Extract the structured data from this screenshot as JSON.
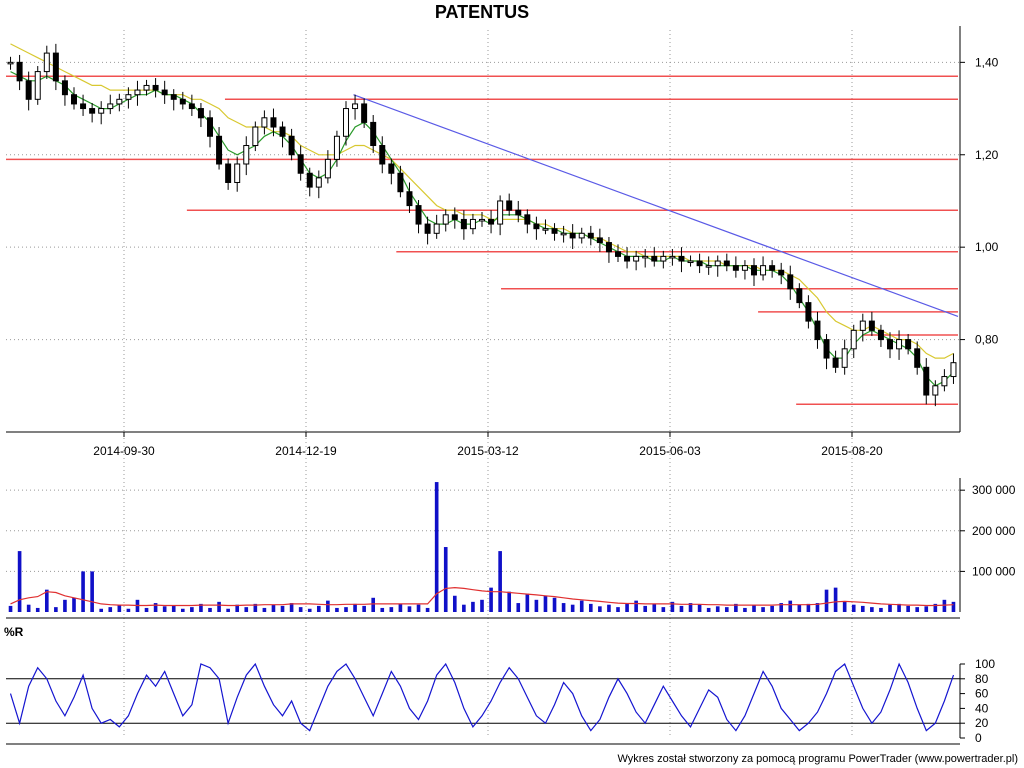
{
  "chart_data": {
    "type": "candlestick",
    "title": "PATENTUS",
    "footer": "Wykres został stworzony za pomocą programu PowerTrader (www.powertrader.pl)",
    "x_ticks": [
      "2014-09-30",
      "2014-12-19",
      "2015-03-12",
      "2015-06-03",
      "2015-08-20"
    ],
    "price": {
      "y_ticks": [
        "1,40",
        "1,20",
        "1,00",
        "0,80"
      ],
      "y_tick_values": [
        1.4,
        1.2,
        1.0,
        0.8
      ],
      "ylim": [
        0.6,
        1.47
      ],
      "close": [
        1.4,
        1.36,
        1.32,
        1.38,
        1.42,
        1.36,
        1.33,
        1.31,
        1.3,
        1.29,
        1.3,
        1.31,
        1.32,
        1.33,
        1.34,
        1.35,
        1.34,
        1.33,
        1.32,
        1.31,
        1.3,
        1.28,
        1.24,
        1.18,
        1.14,
        1.18,
        1.22,
        1.26,
        1.28,
        1.26,
        1.24,
        1.2,
        1.16,
        1.13,
        1.15,
        1.19,
        1.24,
        1.3,
        1.31,
        1.27,
        1.22,
        1.18,
        1.16,
        1.12,
        1.09,
        1.05,
        1.03,
        1.05,
        1.07,
        1.06,
        1.04,
        1.06,
        1.06,
        1.05,
        1.1,
        1.08,
        1.07,
        1.05,
        1.04,
        1.04,
        1.03,
        1.03,
        1.02,
        1.03,
        1.02,
        1.01,
        0.99,
        0.98,
        0.97,
        0.98,
        0.98,
        0.97,
        0.98,
        0.98,
        0.97,
        0.97,
        0.96,
        0.96,
        0.97,
        0.96,
        0.95,
        0.96,
        0.94,
        0.96,
        0.95,
        0.94,
        0.91,
        0.88,
        0.84,
        0.8,
        0.76,
        0.74,
        0.78,
        0.82,
        0.84,
        0.82,
        0.8,
        0.78,
        0.8,
        0.78,
        0.74,
        0.68,
        0.7,
        0.72,
        0.75
      ],
      "sma_short": [
        1.38,
        1.37,
        1.36,
        1.36,
        1.37,
        1.36,
        1.35,
        1.33,
        1.32,
        1.31,
        1.3,
        1.3,
        1.31,
        1.32,
        1.33,
        1.33,
        1.34,
        1.33,
        1.33,
        1.32,
        1.31,
        1.29,
        1.27,
        1.24,
        1.21,
        1.2,
        1.21,
        1.22,
        1.24,
        1.25,
        1.24,
        1.22,
        1.19,
        1.16,
        1.15,
        1.16,
        1.19,
        1.23,
        1.26,
        1.27,
        1.25,
        1.22,
        1.19,
        1.16,
        1.12,
        1.09,
        1.06,
        1.05,
        1.05,
        1.06,
        1.05,
        1.05,
        1.06,
        1.05,
        1.07,
        1.07,
        1.07,
        1.06,
        1.05,
        1.04,
        1.04,
        1.03,
        1.03,
        1.03,
        1.02,
        1.01,
        1.0,
        0.99,
        0.98,
        0.98,
        0.98,
        0.97,
        0.97,
        0.98,
        0.97,
        0.97,
        0.97,
        0.96,
        0.96,
        0.96,
        0.96,
        0.96,
        0.95,
        0.95,
        0.95,
        0.94,
        0.92,
        0.89,
        0.86,
        0.82,
        0.78,
        0.76,
        0.76,
        0.79,
        0.81,
        0.82,
        0.81,
        0.8,
        0.79,
        0.78,
        0.76,
        0.72,
        0.7,
        0.71,
        0.73
      ],
      "sma_long": [
        1.44,
        1.43,
        1.42,
        1.41,
        1.4,
        1.39,
        1.38,
        1.37,
        1.36,
        1.35,
        1.35,
        1.34,
        1.34,
        1.34,
        1.34,
        1.34,
        1.34,
        1.33,
        1.33,
        1.33,
        1.32,
        1.32,
        1.31,
        1.3,
        1.28,
        1.27,
        1.26,
        1.26,
        1.26,
        1.25,
        1.25,
        1.24,
        1.22,
        1.21,
        1.2,
        1.2,
        1.2,
        1.21,
        1.22,
        1.22,
        1.21,
        1.2,
        1.19,
        1.17,
        1.15,
        1.13,
        1.11,
        1.09,
        1.08,
        1.08,
        1.07,
        1.07,
        1.07,
        1.06,
        1.06,
        1.06,
        1.06,
        1.06,
        1.05,
        1.05,
        1.04,
        1.04,
        1.03,
        1.03,
        1.02,
        1.02,
        1.01,
        1.0,
        0.99,
        0.99,
        0.98,
        0.98,
        0.98,
        0.98,
        0.98,
        0.97,
        0.97,
        0.97,
        0.97,
        0.96,
        0.96,
        0.96,
        0.96,
        0.95,
        0.95,
        0.95,
        0.94,
        0.93,
        0.91,
        0.89,
        0.86,
        0.84,
        0.83,
        0.82,
        0.82,
        0.83,
        0.82,
        0.81,
        0.8,
        0.8,
        0.79,
        0.77,
        0.76,
        0.76,
        0.77
      ],
      "support_levels": [
        1.37,
        1.32,
        1.19,
        1.08,
        0.99,
        0.91,
        0.86,
        0.81,
        0.66
      ],
      "trendline": {
        "from": [
          0.365,
          1.33
        ],
        "to": [
          1.0,
          0.85
        ]
      }
    },
    "volume": {
      "y_ticks": [
        "300 000",
        "200 000",
        "100 000"
      ],
      "y_tick_values": [
        300000,
        200000,
        100000
      ],
      "ylim": [
        0,
        330000
      ],
      "values": [
        15000,
        150000,
        18000,
        10000,
        55000,
        12000,
        30000,
        35000,
        100000,
        100000,
        8000,
        12000,
        18000,
        8000,
        30000,
        10000,
        22000,
        14000,
        15000,
        8000,
        12000,
        20000,
        10000,
        25000,
        8000,
        18000,
        12000,
        20000,
        10000,
        18000,
        15000,
        22000,
        12000,
        8000,
        15000,
        28000,
        10000,
        12000,
        20000,
        15000,
        35000,
        10000,
        12000,
        20000,
        14000,
        18000,
        10000,
        320000,
        160000,
        40000,
        18000,
        25000,
        30000,
        60000,
        150000,
        50000,
        22000,
        45000,
        30000,
        40000,
        35000,
        22000,
        18000,
        28000,
        20000,
        14000,
        18000,
        12000,
        20000,
        28000,
        15000,
        20000,
        12000,
        25000,
        15000,
        22000,
        18000,
        10000,
        14000,
        12000,
        20000,
        10000,
        18000,
        12000,
        15000,
        22000,
        28000,
        18000,
        20000,
        22000,
        55000,
        60000,
        25000,
        18000,
        15000,
        12000,
        10000,
        18000,
        20000,
        15000,
        12000,
        14000,
        20000,
        30000,
        25000
      ],
      "ma": [
        20000,
        30000,
        35000,
        38000,
        50000,
        48000,
        40000,
        35000,
        30000,
        25000,
        20000,
        18000,
        17000,
        17000,
        16000,
        16000,
        17000,
        16000,
        16000,
        16000,
        16000,
        17000,
        17000,
        17000,
        16000,
        16000,
        17000,
        17000,
        18000,
        18000,
        18000,
        20000,
        20000,
        20000,
        19000,
        18000,
        18000,
        19000,
        19000,
        19000,
        20000,
        20000,
        20000,
        20000,
        20000,
        20000,
        20000,
        45000,
        58000,
        60000,
        58000,
        55000,
        52000,
        50000,
        50000,
        48000,
        46000,
        44000,
        42000,
        40000,
        38000,
        35000,
        32000,
        30000,
        28000,
        26000,
        24000,
        22000,
        21000,
        21000,
        20000,
        20000,
        20000,
        20000,
        19000,
        19000,
        19000,
        18000,
        18000,
        17000,
        17000,
        17000,
        17000,
        17000,
        17000,
        18000,
        18000,
        18000,
        18000,
        19000,
        22000,
        25000,
        26000,
        25000,
        24000,
        22000,
        20000,
        19000,
        18000,
        17000,
        17000,
        16000,
        16000,
        17000,
        18000
      ]
    },
    "williams_r": {
      "label": "%R",
      "y_ticks": [
        "100",
        "80",
        "60",
        "40",
        "20",
        "0"
      ],
      "y_tick_values": [
        100,
        80,
        60,
        40,
        20,
        0
      ],
      "ylim": [
        0,
        100
      ],
      "levels": [
        80,
        20
      ],
      "values": [
        60,
        20,
        70,
        95,
        80,
        50,
        30,
        55,
        85,
        40,
        20,
        25,
        15,
        30,
        60,
        85,
        70,
        90,
        60,
        30,
        45,
        100,
        95,
        80,
        20,
        55,
        85,
        100,
        70,
        45,
        30,
        50,
        20,
        10,
        40,
        70,
        90,
        100,
        80,
        55,
        30,
        60,
        90,
        70,
        40,
        25,
        50,
        85,
        100,
        75,
        40,
        15,
        30,
        50,
        75,
        95,
        80,
        55,
        30,
        20,
        45,
        75,
        60,
        30,
        10,
        25,
        55,
        80,
        60,
        35,
        20,
        45,
        70,
        50,
        30,
        15,
        40,
        65,
        55,
        25,
        10,
        30,
        60,
        90,
        70,
        40,
        25,
        10,
        20,
        35,
        60,
        90,
        100,
        70,
        40,
        20,
        35,
        65,
        100,
        75,
        40,
        10,
        20,
        50,
        85
      ]
    }
  }
}
